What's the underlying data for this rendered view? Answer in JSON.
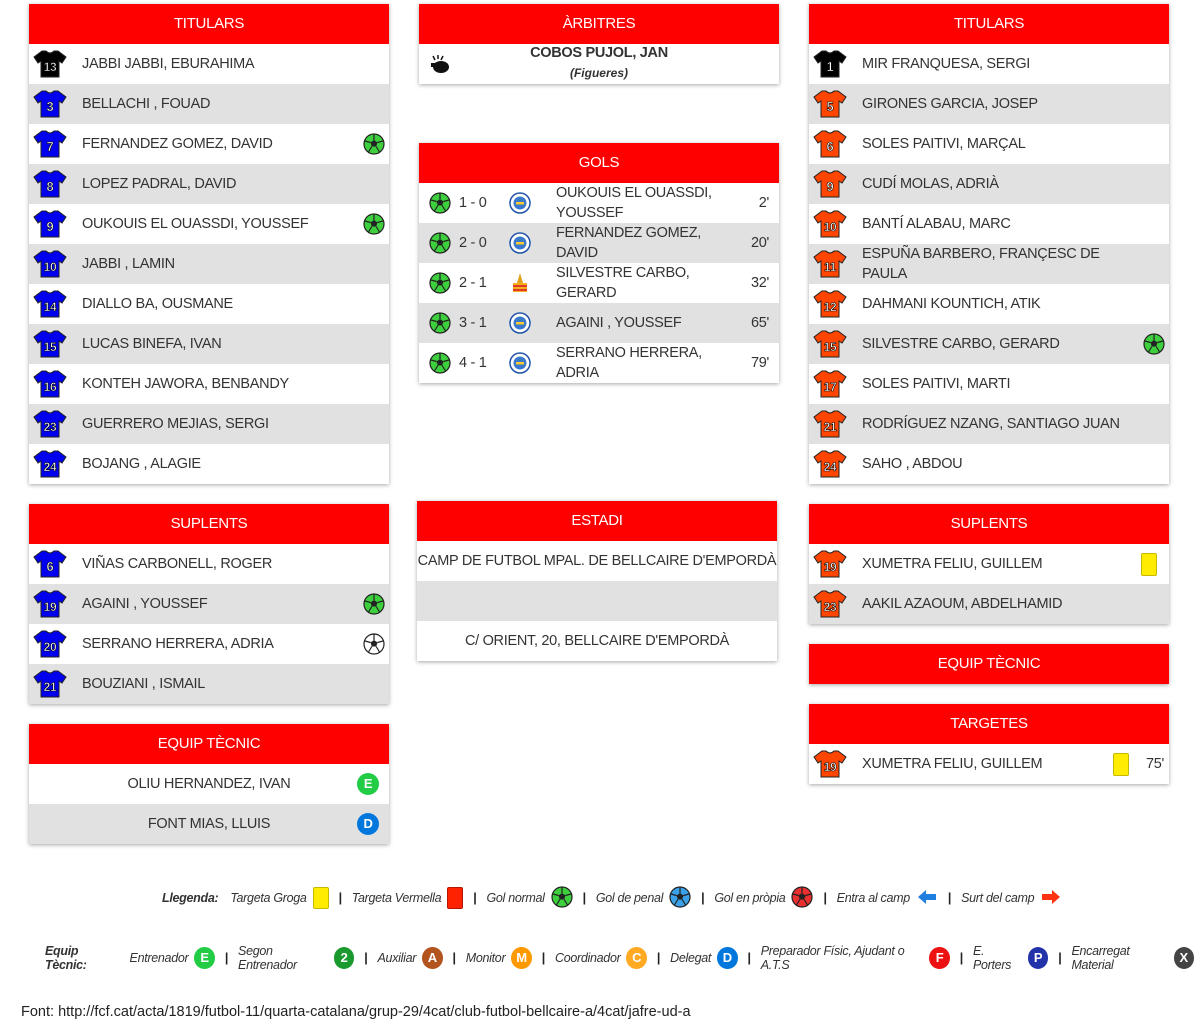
{
  "colors": {
    "header_red": "#ff0000",
    "home_shirt": "#0000ee",
    "away_shirt": "#ff4500",
    "gk_shirt": "#000000",
    "yellow_card": "#ffec00",
    "green_badge": "#22cc44",
    "blue_badge": "#0077dd"
  },
  "home_titulars": {
    "title": "TITULARS",
    "players": [
      {
        "num": "13",
        "name": "JABBI JABBI, EBURAHIMA",
        "shirt": "gk",
        "icon": ""
      },
      {
        "num": "3",
        "name": "BELLACHI , FOUAD",
        "shirt": "home",
        "icon": ""
      },
      {
        "num": "7",
        "name": "FERNANDEZ GOMEZ, DAVID",
        "shirt": "home",
        "icon": "goal-ball-icon"
      },
      {
        "num": "8",
        "name": "LOPEZ PADRAL, DAVID",
        "shirt": "home",
        "icon": ""
      },
      {
        "num": "9",
        "name": "OUKOUIS EL OUASSDI, YOUSSEF",
        "shirt": "home",
        "icon": "goal-ball-icon"
      },
      {
        "num": "10",
        "name": "JABBI , LAMIN",
        "shirt": "home",
        "icon": ""
      },
      {
        "num": "14",
        "name": "DIALLO BA, OUSMANE",
        "shirt": "home",
        "icon": ""
      },
      {
        "num": "15",
        "name": "LUCAS BINEFA, IVAN",
        "shirt": "home",
        "icon": ""
      },
      {
        "num": "16",
        "name": "KONTEH JAWORA, BENBANDY",
        "shirt": "home",
        "icon": ""
      },
      {
        "num": "23",
        "name": "GUERRERO MEJIAS, SERGI",
        "shirt": "home",
        "icon": ""
      },
      {
        "num": "24",
        "name": "BOJANG , ALAGIE",
        "shirt": "home",
        "icon": ""
      }
    ]
  },
  "home_suplents": {
    "title": "SUPLENTS",
    "players": [
      {
        "num": "6",
        "name": "VIÑAS CARBONELL, ROGER",
        "shirt": "home",
        "icon": ""
      },
      {
        "num": "19",
        "name": "AGAINI , YOUSSEF",
        "shirt": "home",
        "icon": "goal-ball-icon"
      },
      {
        "num": "20",
        "name": "SERRANO HERRERA, ADRIA",
        "shirt": "home",
        "icon": "goal-ball-grey-icon"
      },
      {
        "num": "21",
        "name": "BOUZIANI , ISMAIL",
        "shirt": "home",
        "icon": ""
      }
    ]
  },
  "home_staff": {
    "title": "EQUIP TÈCNIC",
    "members": [
      {
        "name": "OLIU HERNANDEZ, IVAN",
        "badge": "E",
        "badge_color": "#22cc44"
      },
      {
        "name": "FONT MIAS, LLUIS",
        "badge": "D",
        "badge_color": "#0077dd"
      }
    ]
  },
  "referees": {
    "title": "ÀRBITRES",
    "name": "COBOS PUJOL, JAN",
    "city": "(Figueres)"
  },
  "goals": {
    "title": "GOLS",
    "items": [
      {
        "score": "1 - 0",
        "name": "OUKOUIS EL OUASSDI, YOUSSEF",
        "minute": "2'",
        "team": "home"
      },
      {
        "score": "2 - 0",
        "name": "FERNANDEZ GOMEZ, DAVID",
        "minute": "20'",
        "team": "home"
      },
      {
        "score": "2 - 1",
        "name": "SILVESTRE CARBO, GERARD",
        "minute": "32'",
        "team": "away"
      },
      {
        "score": "3 - 1",
        "name": "AGAINI , YOUSSEF",
        "minute": "65'",
        "team": "home"
      },
      {
        "score": "4 - 1",
        "name": "SERRANO HERRERA, ADRIA",
        "minute": "79'",
        "team": "home"
      }
    ]
  },
  "stadium": {
    "title": "ESTADI",
    "name": "CAMP DE FUTBOL MPAL. DE BELLCAIRE D'EMPORDÀ",
    "middle": "",
    "address": "C/ ORIENT, 20, BELLCAIRE D'EMPORDÀ"
  },
  "away_titulars": {
    "title": "TITULARS",
    "players": [
      {
        "num": "1",
        "name": "MIR FRANQUESA, SERGI",
        "shirt": "gk",
        "icon": ""
      },
      {
        "num": "5",
        "name": "GIRONES GARCIA, JOSEP",
        "shirt": "away",
        "icon": ""
      },
      {
        "num": "6",
        "name": "SOLES PAITIVI, MARÇAL",
        "shirt": "away",
        "icon": ""
      },
      {
        "num": "9",
        "name": "CUDÍ MOLAS, ADRIÀ",
        "shirt": "away",
        "icon": ""
      },
      {
        "num": "10",
        "name": "BANTÍ ALABAU, MARC",
        "shirt": "away",
        "icon": ""
      },
      {
        "num": "11",
        "name": "ESPUÑA BARBERO, FRANÇESC DE PAULA",
        "shirt": "away",
        "icon": ""
      },
      {
        "num": "12",
        "name": "DAHMANI KOUNTICH, ATIK",
        "shirt": "away",
        "icon": ""
      },
      {
        "num": "15",
        "name": "SILVESTRE CARBO, GERARD",
        "shirt": "away",
        "icon": "goal-ball-icon"
      },
      {
        "num": "17",
        "name": "SOLES PAITIVI, MARTI",
        "shirt": "away",
        "icon": ""
      },
      {
        "num": "21",
        "name": "RODRÍGUEZ NZANG, SANTIAGO JUAN",
        "shirt": "away",
        "icon": ""
      },
      {
        "num": "24",
        "name": "SAHO , ABDOU",
        "shirt": "away",
        "icon": ""
      }
    ]
  },
  "away_suplents": {
    "title": "SUPLENTS",
    "players": [
      {
        "num": "19",
        "name": "XUMETRA FELIU, GUILLEM",
        "shirt": "away",
        "icon": "yellow-card-icon"
      },
      {
        "num": "23",
        "name": "AAKIL AZAOUM, ABDELHAMID",
        "shirt": "away",
        "icon": ""
      }
    ]
  },
  "away_staff": {
    "title": "EQUIP TÈCNIC"
  },
  "cards": {
    "title": "TARGETES",
    "items": [
      {
        "num": "19",
        "name": "XUMETRA FELIU, GUILLEM",
        "minute": "75'",
        "card": "yellow"
      }
    ]
  },
  "legend": {
    "label": "Llegenda:",
    "yellow_card": "Targeta Groga",
    "red_card": "Targeta Vermella",
    "goal": "Gol normal",
    "penalty": "Gol de penal",
    "own_goal": "Gol en pròpia",
    "sub_in": "Entra al camp",
    "sub_out": "Surt del camp"
  },
  "staff_legend": {
    "label": "Equip Tècnic:",
    "items": [
      {
        "text": "Entrenador",
        "badge": "E",
        "color": "#22cc44"
      },
      {
        "text": "Segon Entrenador",
        "badge": "2",
        "color": "#1a9a2e"
      },
      {
        "text": "Auxiliar",
        "badge": "A",
        "color": "#b3541e"
      },
      {
        "text": "Monitor",
        "badge": "M",
        "color": "#ff9900"
      },
      {
        "text": "Coordinador",
        "badge": "C",
        "color": "#ffaa22"
      },
      {
        "text": "Delegat",
        "badge": "D",
        "color": "#0077dd"
      },
      {
        "text": "Preparador Físic, Ajudant o A.T.S",
        "badge": "F",
        "color": "#ee1111"
      },
      {
        "text": "E. Porters",
        "badge": "P",
        "color": "#2233aa"
      },
      {
        "text": "Encarregat Material",
        "badge": "X",
        "color": "#444444"
      }
    ]
  },
  "source": "Font: http://fcf.cat/acta/1819/futbol-11/quarta-catalana/grup-29/4cat/club-futbol-bellcaire-a/4cat/jafre-ud-a"
}
